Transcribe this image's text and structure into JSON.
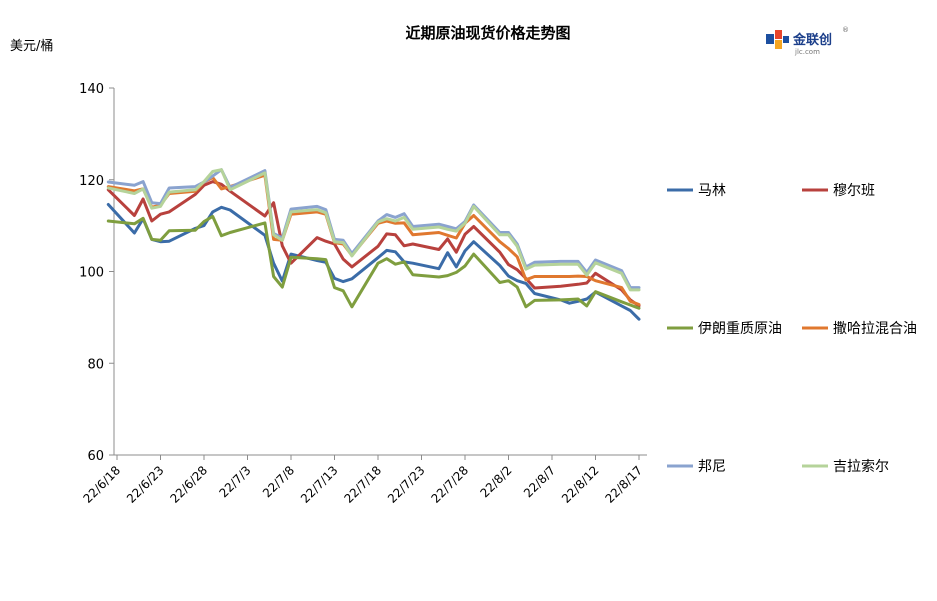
{
  "title": "近期原油现货价格走势图",
  "unit_label": "美元/桶",
  "logo": {
    "name": "金联创",
    "subtext": "jlc.com",
    "colors": [
      "#1c4fa0",
      "#e8452c",
      "#f5a623"
    ]
  },
  "chart_data": {
    "type": "line",
    "title": "近期原油现货价格走势图",
    "ylabel": "美元/桶",
    "xlabel": "",
    "ylim": [
      60,
      140
    ],
    "yticks": [
      60,
      80,
      100,
      120,
      140
    ],
    "x_tick_labels": [
      "22/6/18",
      "22/6/23",
      "22/6/28",
      "22/7/3",
      "22/7/8",
      "22/7/13",
      "22/7/18",
      "22/7/23",
      "22/7/28",
      "22/8/2",
      "22/8/7",
      "22/8/12",
      "22/8/17"
    ],
    "x_range": [
      "2022-06-18",
      "2022-08-17"
    ],
    "grid": false,
    "legend_position": "right",
    "series": [
      {
        "name": "马林",
        "color": "#3b6ca8",
        "x": [
          "2022-06-17",
          "2022-06-20",
          "2022-06-21",
          "2022-06-22",
          "2022-06-23",
          "2022-06-24",
          "2022-06-27",
          "2022-06-28",
          "2022-06-29",
          "2022-06-30",
          "2022-07-01",
          "2022-07-05",
          "2022-07-06",
          "2022-07-07",
          "2022-07-08",
          "2022-07-11",
          "2022-07-12",
          "2022-07-13",
          "2022-07-14",
          "2022-07-15",
          "2022-07-18",
          "2022-07-19",
          "2022-07-20",
          "2022-07-21",
          "2022-07-22",
          "2022-07-25",
          "2022-07-26",
          "2022-07-27",
          "2022-07-28",
          "2022-07-29",
          "2022-08-01",
          "2022-08-02",
          "2022-08-03",
          "2022-08-04",
          "2022-08-05",
          "2022-08-08",
          "2022-08-09",
          "2022-08-10",
          "2022-08-11",
          "2022-08-12",
          "2022-08-15",
          "2022-08-16",
          "2022-08-17"
        ],
        "y": [
          114.6,
          108.4,
          111.5,
          107.0,
          106.5,
          106.6,
          109.4,
          110.0,
          113.0,
          114.0,
          113.4,
          107.9,
          101.8,
          97.9,
          103.8,
          102.4,
          102.0,
          98.5,
          97.8,
          98.4,
          103.0,
          104.6,
          104.3,
          102.1,
          101.8,
          100.6,
          104.1,
          101.0,
          104.5,
          106.5,
          101.3,
          99.0,
          98.0,
          97.4,
          95.2,
          93.8,
          93.1,
          93.5,
          94.0,
          95.5,
          92.5,
          91.5,
          89.6
        ]
      },
      {
        "name": "穆尔班",
        "color": "#b8413d",
        "x": [
          "2022-06-17",
          "2022-06-20",
          "2022-06-21",
          "2022-06-22",
          "2022-06-23",
          "2022-06-24",
          "2022-06-27",
          "2022-06-28",
          "2022-06-29",
          "2022-06-30",
          "2022-07-01",
          "2022-07-05",
          "2022-07-06",
          "2022-07-07",
          "2022-07-08",
          "2022-07-11",
          "2022-07-12",
          "2022-07-13",
          "2022-07-14",
          "2022-07-15",
          "2022-07-18",
          "2022-07-19",
          "2022-07-20",
          "2022-07-21",
          "2022-07-22",
          "2022-07-25",
          "2022-07-26",
          "2022-07-27",
          "2022-07-28",
          "2022-07-29",
          "2022-08-01",
          "2022-08-02",
          "2022-08-03",
          "2022-08-04",
          "2022-08-05",
          "2022-08-08",
          "2022-08-09",
          "2022-08-10",
          "2022-08-11",
          "2022-08-12",
          "2022-08-15",
          "2022-08-16",
          "2022-08-17"
        ],
        "y": [
          117.8,
          112.2,
          115.8,
          111.0,
          112.5,
          113.0,
          116.8,
          118.8,
          119.6,
          119.0,
          117.5,
          112.1,
          115.0,
          105.6,
          101.8,
          107.4,
          106.6,
          106.0,
          102.7,
          101.0,
          105.5,
          108.2,
          108.0,
          105.6,
          106.0,
          104.8,
          107.1,
          104.2,
          108.1,
          109.8,
          104.2,
          101.5,
          100.4,
          98.5,
          96.4,
          96.8,
          97.0,
          97.2,
          97.5,
          99.6,
          96.0,
          93.8,
          92.5
        ]
      },
      {
        "name": "伊朗重质原油",
        "color": "#7f9e3f",
        "x": [
          "2022-06-17",
          "2022-06-20",
          "2022-06-21",
          "2022-06-22",
          "2022-06-23",
          "2022-06-24",
          "2022-06-27",
          "2022-06-28",
          "2022-06-29",
          "2022-06-30",
          "2022-07-01",
          "2022-07-05",
          "2022-07-06",
          "2022-07-07",
          "2022-07-08",
          "2022-07-11",
          "2022-07-12",
          "2022-07-13",
          "2022-07-14",
          "2022-07-15",
          "2022-07-18",
          "2022-07-19",
          "2022-07-20",
          "2022-07-21",
          "2022-07-22",
          "2022-07-25",
          "2022-07-26",
          "2022-07-27",
          "2022-07-28",
          "2022-07-29",
          "2022-08-01",
          "2022-08-02",
          "2022-08-03",
          "2022-08-04",
          "2022-08-05",
          "2022-08-08",
          "2022-08-09",
          "2022-08-10",
          "2022-08-11",
          "2022-08-12",
          "2022-08-15",
          "2022-08-16",
          "2022-08-17"
        ],
        "y": [
          111.0,
          110.4,
          111.6,
          107.0,
          106.8,
          108.9,
          109.0,
          110.9,
          112.0,
          107.8,
          108.5,
          110.6,
          98.9,
          96.6,
          103.1,
          102.8,
          102.6,
          96.5,
          95.8,
          92.3,
          101.8,
          102.8,
          101.6,
          102.1,
          99.3,
          98.8,
          99.1,
          99.8,
          101.2,
          103.8,
          97.6,
          98.0,
          96.6,
          92.3,
          93.7,
          93.8,
          93.9,
          94.0,
          92.5,
          95.6,
          93.4,
          92.7,
          92.0
        ]
      },
      {
        "name": "撒哈拉混合油",
        "color": "#e0782f",
        "x": [
          "2022-06-17",
          "2022-06-20",
          "2022-06-21",
          "2022-06-22",
          "2022-06-23",
          "2022-06-24",
          "2022-06-27",
          "2022-06-28",
          "2022-06-29",
          "2022-06-30",
          "2022-07-01",
          "2022-07-05",
          "2022-07-06",
          "2022-07-07",
          "2022-07-08",
          "2022-07-11",
          "2022-07-12",
          "2022-07-13",
          "2022-07-14",
          "2022-07-15",
          "2022-07-18",
          "2022-07-19",
          "2022-07-20",
          "2022-07-21",
          "2022-07-22",
          "2022-07-25",
          "2022-07-26",
          "2022-07-27",
          "2022-07-28",
          "2022-07-29",
          "2022-08-01",
          "2022-08-02",
          "2022-08-03",
          "2022-08-04",
          "2022-08-05",
          "2022-08-08",
          "2022-08-09",
          "2022-08-10",
          "2022-08-11",
          "2022-08-12",
          "2022-08-15",
          "2022-08-16",
          "2022-08-17"
        ],
        "y": [
          118.5,
          117.6,
          118.0,
          114.0,
          114.5,
          117.0,
          117.5,
          119.5,
          120.5,
          118.0,
          118.5,
          121.0,
          107.0,
          106.8,
          112.5,
          113.0,
          112.5,
          106.3,
          106.0,
          103.5,
          110.5,
          111.0,
          110.5,
          110.6,
          108.0,
          108.5,
          107.9,
          107.3,
          110.5,
          112.2,
          106.5,
          105.0,
          103.2,
          98.2,
          98.9,
          98.9,
          98.9,
          99.0,
          98.9,
          98.0,
          96.5,
          93.5,
          92.8
        ]
      },
      {
        "name": "邦尼",
        "color": "#8aa3cf",
        "x": [
          "2022-06-17",
          "2022-06-20",
          "2022-06-21",
          "2022-06-22",
          "2022-06-23",
          "2022-06-24",
          "2022-06-27",
          "2022-06-28",
          "2022-06-29",
          "2022-06-30",
          "2022-07-01",
          "2022-07-05",
          "2022-07-06",
          "2022-07-07",
          "2022-07-08",
          "2022-07-11",
          "2022-07-12",
          "2022-07-13",
          "2022-07-14",
          "2022-07-15",
          "2022-07-18",
          "2022-07-19",
          "2022-07-20",
          "2022-07-21",
          "2022-07-22",
          "2022-07-25",
          "2022-07-26",
          "2022-07-27",
          "2022-07-28",
          "2022-07-29",
          "2022-08-01",
          "2022-08-02",
          "2022-08-03",
          "2022-08-04",
          "2022-08-05",
          "2022-08-08",
          "2022-08-09",
          "2022-08-10",
          "2022-08-11",
          "2022-08-12",
          "2022-08-15",
          "2022-08-16",
          "2022-08-17"
        ],
        "y": [
          119.5,
          118.8,
          119.6,
          115.0,
          114.8,
          118.2,
          118.5,
          119.5,
          120.8,
          122.2,
          118.3,
          122.0,
          108.3,
          107.3,
          113.6,
          114.2,
          113.5,
          107.0,
          106.8,
          103.9,
          111.0,
          112.4,
          111.8,
          112.6,
          109.8,
          110.3,
          109.8,
          109.3,
          110.9,
          114.5,
          108.5,
          108.5,
          106.0,
          101.0,
          102.0,
          102.2,
          102.2,
          102.2,
          99.8,
          102.5,
          100.2,
          96.5,
          96.5
        ]
      },
      {
        "name": "吉拉索尔",
        "color": "#b5d39a",
        "x": [
          "2022-06-17",
          "2022-06-20",
          "2022-06-21",
          "2022-06-22",
          "2022-06-23",
          "2022-06-24",
          "2022-06-27",
          "2022-06-28",
          "2022-06-29",
          "2022-06-30",
          "2022-07-01",
          "2022-07-05",
          "2022-07-06",
          "2022-07-07",
          "2022-07-08",
          "2022-07-11",
          "2022-07-12",
          "2022-07-13",
          "2022-07-14",
          "2022-07-15",
          "2022-07-18",
          "2022-07-19",
          "2022-07-20",
          "2022-07-21",
          "2022-07-22",
          "2022-07-25",
          "2022-07-26",
          "2022-07-27",
          "2022-07-28",
          "2022-07-29",
          "2022-08-01",
          "2022-08-02",
          "2022-08-03",
          "2022-08-04",
          "2022-08-05",
          "2022-08-08",
          "2022-08-09",
          "2022-08-10",
          "2022-08-11",
          "2022-08-12",
          "2022-08-15",
          "2022-08-16",
          "2022-08-17"
        ],
        "y": [
          118.2,
          117.0,
          118.0,
          113.8,
          114.2,
          117.3,
          117.8,
          119.6,
          121.8,
          122.2,
          117.8,
          121.5,
          108.0,
          106.8,
          113.0,
          113.5,
          112.8,
          106.5,
          106.3,
          103.4,
          110.8,
          111.5,
          111.0,
          111.8,
          109.2,
          109.7,
          109.2,
          108.8,
          110.5,
          114.2,
          108.0,
          108.0,
          105.5,
          100.5,
          101.4,
          101.6,
          101.6,
          101.6,
          99.2,
          101.9,
          99.6,
          96.0,
          96.0
        ]
      }
    ]
  }
}
